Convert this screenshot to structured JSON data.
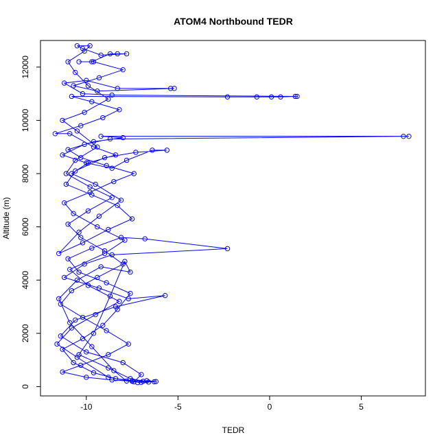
{
  "chart_data": {
    "type": "scatter",
    "title": "ATOM4 Northbound TEDR",
    "xlabel": "TEDR",
    "ylabel": "Altitude (m)",
    "xlim": [
      -12.5,
      8.5
    ],
    "ylim": [
      -350,
      13000
    ],
    "x_ticks": [
      -10,
      -5,
      0,
      5
    ],
    "y_ticks": [
      0,
      2000,
      4000,
      6000,
      8000,
      10000,
      12000
    ],
    "grid": false,
    "legend": "none",
    "style": {
      "color": "#0000ff",
      "marker": "open-circle",
      "connect": true
    },
    "series": [
      {
        "values": [
          [
            -7.2,
            150
          ],
          [
            -6.9,
            200
          ],
          [
            -6.3,
            180
          ],
          [
            -7.5,
            220
          ],
          [
            -8.4,
            300
          ],
          [
            -9.6,
            520
          ],
          [
            -10.7,
            900
          ],
          [
            -11.3,
            1400
          ],
          [
            -10.2,
            1800
          ],
          [
            -9.1,
            2300
          ],
          [
            -8.3,
            2900
          ],
          [
            -7.6,
            3500
          ],
          [
            -8.9,
            3900
          ],
          [
            -10.4,
            4300
          ],
          [
            -11.0,
            4800
          ],
          [
            -9.7,
            5200
          ],
          [
            -8.1,
            5600
          ],
          [
            -6.8,
            5550
          ],
          [
            -2.3,
            5180
          ],
          [
            -8.6,
            4950
          ],
          [
            -10.1,
            4600
          ],
          [
            -11.2,
            4100
          ],
          [
            -9.3,
            3700
          ],
          [
            -7.7,
            3300
          ],
          [
            -5.7,
            3420
          ],
          [
            -8.4,
            3000
          ],
          [
            -10.6,
            2500
          ],
          [
            -11.4,
            1900
          ],
          [
            -10.0,
            1300
          ],
          [
            -8.0,
            900
          ],
          [
            -7.0,
            450
          ],
          [
            -7.4,
            180
          ],
          [
            -8.8,
            350
          ],
          [
            -10.5,
            1100
          ],
          [
            -11.6,
            1600
          ],
          [
            -10.8,
            2200
          ],
          [
            -9.5,
            2700
          ],
          [
            -8.2,
            3200
          ],
          [
            -9.9,
            3800
          ],
          [
            -10.9,
            4400
          ],
          [
            -9.0,
            5000
          ],
          [
            -7.9,
            5500
          ],
          [
            -9.4,
            6000
          ],
          [
            -10.7,
            6500
          ],
          [
            -11.2,
            6900
          ],
          [
            -9.8,
            7300
          ],
          [
            -8.5,
            7700
          ],
          [
            -7.4,
            8000
          ],
          [
            -8.9,
            8300
          ],
          [
            -10.3,
            8600
          ],
          [
            -11.0,
            8900
          ],
          [
            -9.6,
            9200
          ],
          [
            -8.0,
            9350
          ],
          [
            -9.2,
            9400
          ],
          [
            7.3,
            9400
          ],
          [
            7.6,
            9400
          ],
          [
            -8.7,
            9300
          ],
          [
            -10.1,
            9100
          ],
          [
            -11.3,
            8700
          ],
          [
            -10.0,
            8400
          ],
          [
            -8.6,
            8200
          ],
          [
            -7.8,
            8500
          ],
          [
            -6.4,
            8880
          ],
          [
            -5.6,
            8880
          ],
          [
            -7.3,
            8800
          ],
          [
            -9.0,
            8600
          ],
          [
            -10.6,
            8100
          ],
          [
            -11.1,
            7600
          ],
          [
            -9.7,
            7200
          ],
          [
            -8.3,
            6800
          ],
          [
            -7.5,
            6300
          ],
          [
            -8.8,
            5900
          ],
          [
            -10.2,
            5400
          ],
          [
            -11.5,
            5000
          ],
          [
            -10.4,
            5800
          ],
          [
            -9.3,
            6400
          ],
          [
            -8.1,
            7000
          ],
          [
            -9.5,
            7600
          ],
          [
            -10.8,
            8000
          ],
          [
            -9.9,
            8400
          ],
          [
            -8.4,
            8700
          ],
          [
            -9.6,
            9000
          ],
          [
            -10.9,
            9500
          ],
          [
            -11.7,
            9500
          ],
          [
            -10.3,
            9800
          ],
          [
            -9.1,
            10100
          ],
          [
            -8.2,
            10400
          ],
          [
            -9.7,
            10700
          ],
          [
            -10.8,
            10900
          ],
          [
            -2.3,
            10880
          ],
          [
            -0.7,
            10880
          ],
          [
            0.1,
            10880
          ],
          [
            0.6,
            10880
          ],
          [
            1.4,
            10900
          ],
          [
            1.5,
            10900
          ],
          [
            -8.6,
            10950
          ],
          [
            -10.2,
            11000
          ],
          [
            -11.2,
            11400
          ],
          [
            -10.0,
            11500
          ],
          [
            -8.3,
            11200
          ],
          [
            -5.4,
            11200
          ],
          [
            -5.2,
            11200
          ],
          [
            -9.4,
            11100
          ],
          [
            -10.7,
            11300
          ],
          [
            -9.3,
            11600
          ],
          [
            -8.0,
            11900
          ],
          [
            -9.6,
            12200
          ],
          [
            -10.4,
            12200
          ],
          [
            -9.7,
            12200
          ],
          [
            -8.7,
            12500
          ],
          [
            -8.3,
            12500
          ],
          [
            -7.8,
            12500
          ],
          [
            -9.2,
            12450
          ],
          [
            -10.2,
            12700
          ],
          [
            -10.5,
            12800
          ],
          [
            -9.8,
            12800
          ],
          [
            -10.1,
            12600
          ],
          [
            -11.0,
            12200
          ],
          [
            -10.6,
            11800
          ],
          [
            -9.9,
            11300
          ],
          [
            -8.8,
            10800
          ],
          [
            -10.1,
            10300
          ],
          [
            -11.3,
            10000
          ],
          [
            -10.5,
            9600
          ],
          [
            -9.4,
            9000
          ],
          [
            -10.6,
            8500
          ],
          [
            -11.1,
            8000
          ],
          [
            -9.8,
            7500
          ],
          [
            -8.6,
            7100
          ],
          [
            -9.9,
            6600
          ],
          [
            -11.0,
            6100
          ],
          [
            -10.3,
            5600
          ],
          [
            -9.0,
            5100
          ],
          [
            -8.0,
            4600
          ],
          [
            -9.4,
            4100
          ],
          [
            -10.8,
            3600
          ],
          [
            -11.4,
            3100
          ],
          [
            -10.2,
            2600
          ],
          [
            -8.9,
            2100
          ],
          [
            -7.7,
            1600
          ],
          [
            -8.8,
            1200
          ],
          [
            -10.3,
            800
          ],
          [
            -11.3,
            550
          ],
          [
            -10.0,
            350
          ],
          [
            -8.6,
            250
          ],
          [
            -7.5,
            200
          ],
          [
            -6.7,
            220
          ],
          [
            -6.2,
            190
          ],
          [
            -7.0,
            160
          ],
          [
            -7.8,
            210
          ],
          [
            -8.5,
            600
          ],
          [
            -9.7,
            1500
          ],
          [
            -10.9,
            2400
          ],
          [
            -11.5,
            3300
          ],
          [
            -10.5,
            4000
          ],
          [
            -9.2,
            4500
          ],
          [
            -7.6,
            4300
          ],
          [
            -7.9,
            4700
          ],
          [
            -8.7,
            3400
          ],
          [
            -9.6,
            2000
          ],
          [
            -10.4,
            1200
          ],
          [
            -8.8,
            700
          ],
          [
            -7.6,
            300
          ],
          [
            -6.6,
            170
          ]
        ]
      }
    ]
  }
}
